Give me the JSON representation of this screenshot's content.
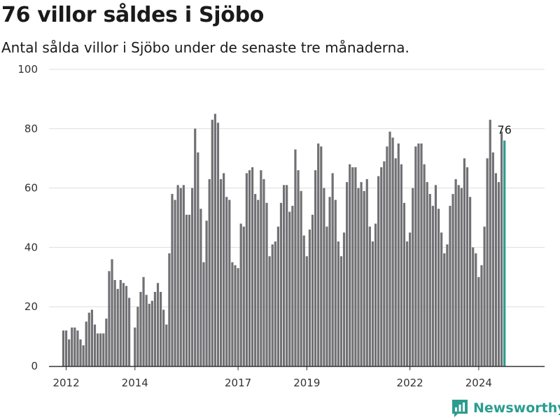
{
  "title": "76 villor såldes i Sjöbo",
  "subtitle": "Antal sålda villor i Sjöbo under de senaste tre månaderna.",
  "logo": {
    "text": "Newsworthy"
  },
  "colors": {
    "bar": "#717074",
    "highlight": "#2a9d8f",
    "grid": "#dddddd",
    "axis": "#333333"
  },
  "chart_data": {
    "type": "bar",
    "title": "76 villor såldes i Sjöbo",
    "subtitle": "Antal sålda villor i Sjöbo under de senaste tre månaderna.",
    "ylim": [
      0,
      100
    ],
    "yticks": [
      0,
      20,
      40,
      60,
      80,
      100
    ],
    "xlim": [
      "2011-07",
      "2025-12"
    ],
    "xticks": [
      {
        "label": "2012",
        "date": "2012-01"
      },
      {
        "label": "2014",
        "date": "2014-01"
      },
      {
        "label": "2017",
        "date": "2017-01"
      },
      {
        "label": "2019",
        "date": "2019-01"
      },
      {
        "label": "2022",
        "date": "2022-01"
      },
      {
        "label": "2024",
        "date": "2024-01"
      }
    ],
    "grid": true,
    "series": [
      {
        "start": "2011-12",
        "values": [
          12,
          12,
          9,
          13,
          13,
          12,
          9,
          7,
          15,
          18,
          19,
          14,
          11,
          11,
          11,
          16,
          32,
          36,
          29,
          26,
          29,
          28,
          27,
          23,
          null,
          13,
          20,
          25,
          30,
          24,
          21,
          22,
          25,
          28,
          25,
          19,
          14,
          38,
          58,
          56,
          61,
          60,
          61,
          51,
          51,
          60,
          80,
          72,
          53,
          35,
          49,
          63,
          83,
          85,
          82,
          63,
          65,
          57,
          56,
          35,
          34,
          33,
          48,
          47,
          65,
          66,
          67,
          58,
          56,
          66,
          63,
          55,
          37,
          41,
          42,
          47,
          55,
          61,
          61,
          52,
          54,
          73,
          66,
          59,
          44,
          37,
          46,
          51,
          66,
          75,
          74,
          60,
          47,
          57,
          65,
          56,
          42,
          37,
          45,
          62,
          68,
          67,
          67,
          60,
          62,
          59,
          63,
          47,
          42,
          48,
          64,
          67,
          69,
          74,
          79,
          77,
          70,
          75,
          68,
          55,
          42,
          45,
          60,
          74,
          75,
          75,
          68,
          62,
          58,
          54,
          61,
          53,
          45,
          38,
          41,
          54,
          58,
          63,
          61,
          60,
          70,
          67,
          57,
          40,
          38,
          30,
          34,
          47,
          70,
          83,
          72,
          65,
          62,
          79,
          76
        ]
      }
    ],
    "highlight_label": "76"
  }
}
